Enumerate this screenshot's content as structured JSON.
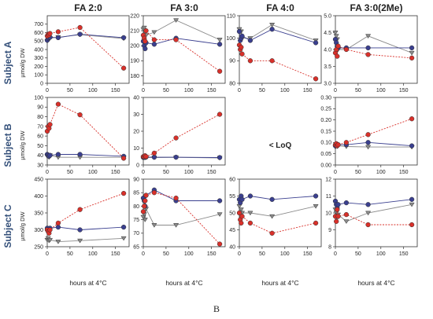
{
  "figure_label": "B",
  "columns": [
    "FA 2:0",
    "FA 3:0",
    "FA 4:0",
    "FA 3:0(2Me)"
  ],
  "rows": [
    "Subject A",
    "Subject B",
    "Subject C"
  ],
  "ylabel": "µmol/g DW",
  "xlabel": "hours at 4°C",
  "loq_text": "< LoQ",
  "colors": {
    "red": "#d9302a",
    "blue": "#3a3f8f",
    "gray": "#8a8a8a"
  },
  "chart_data": [
    {
      "type": "line",
      "row": 0,
      "col": 0,
      "ylim": [
        0,
        800
      ],
      "yticks": [
        0,
        100,
        200,
        300,
        400,
        500,
        600,
        700
      ],
      "x": [
        0,
        2,
        4,
        6,
        24,
        72,
        168
      ],
      "series": [
        {
          "color": "red",
          "marker": "circle",
          "values": [
            560,
            580,
            570,
            590,
            610,
            660,
            180
          ]
        },
        {
          "color": "blue",
          "marker": "circle",
          "values": [
            510,
            530,
            540,
            545,
            540,
            580,
            540
          ]
        },
        {
          "color": "gray",
          "marker": "triangle",
          "values": [
            500,
            515,
            520,
            535,
            545,
            575,
            530
          ]
        }
      ]
    },
    {
      "type": "line",
      "row": 0,
      "col": 1,
      "ylim": [
        175,
        220
      ],
      "yticks": [
        180,
        190,
        200,
        210,
        220
      ],
      "x": [
        0,
        2,
        4,
        6,
        24,
        72,
        168
      ],
      "series": [
        {
          "color": "red",
          "marker": "circle",
          "values": [
            207,
            205,
            203,
            210,
            204,
            204,
            183
          ]
        },
        {
          "color": "blue",
          "marker": "circle",
          "values": [
            203,
            200,
            198,
            202,
            201,
            205,
            201
          ]
        },
        {
          "color": "gray",
          "marker": "triangle",
          "values": [
            211,
            212,
            209,
            207,
            209,
            217,
            204
          ]
        }
      ]
    },
    {
      "type": "line",
      "row": 0,
      "col": 2,
      "ylim": [
        80,
        110
      ],
      "yticks": [
        80,
        90,
        100,
        110
      ],
      "x": [
        0,
        2,
        4,
        6,
        24,
        72,
        168
      ],
      "series": [
        {
          "color": "red",
          "marker": "circle",
          "values": [
            97,
            95,
            96,
            93,
            90,
            90,
            82
          ]
        },
        {
          "color": "blue",
          "marker": "circle",
          "values": [
            103,
            99,
            100,
            101,
            99,
            104,
            98
          ]
        },
        {
          "color": "gray",
          "marker": "triangle",
          "values": [
            104,
            103,
            103,
            100,
            100,
            106,
            99
          ]
        }
      ]
    },
    {
      "type": "line",
      "row": 0,
      "col": 3,
      "ylim": [
        3.0,
        5.0
      ],
      "yticks": [
        3.0,
        3.5,
        4.0,
        4.5,
        5.0
      ],
      "x": [
        0,
        2,
        4,
        6,
        24,
        72,
        168
      ],
      "series": [
        {
          "color": "red",
          "marker": "circle",
          "values": [
            3.9,
            4.0,
            3.8,
            4.1,
            4.0,
            3.85,
            3.75
          ]
        },
        {
          "color": "blue",
          "marker": "circle",
          "values": [
            4.3,
            4.2,
            4.1,
            4.05,
            4.05,
            4.05,
            4.05
          ]
        },
        {
          "color": "gray",
          "marker": "triangle",
          "values": [
            4.5,
            4.4,
            4.3,
            4.0,
            4.0,
            4.4,
            3.9
          ]
        }
      ]
    },
    {
      "type": "line",
      "row": 1,
      "col": 0,
      "ylim": [
        30,
        100
      ],
      "yticks": [
        30,
        40,
        50,
        60,
        70,
        80,
        90,
        100
      ],
      "x": [
        0,
        2,
        4,
        6,
        24,
        72,
        168
      ],
      "series": [
        {
          "color": "red",
          "marker": "circle",
          "values": [
            65,
            70,
            68,
            72,
            93,
            82,
            37
          ]
        },
        {
          "color": "blue",
          "marker": "circle",
          "values": [
            41,
            40,
            39,
            40,
            41,
            41,
            39
          ]
        },
        {
          "color": "gray",
          "marker": "triangle",
          "values": [
            39,
            40,
            38,
            40,
            38,
            38,
            38
          ]
        }
      ]
    },
    {
      "type": "line",
      "row": 1,
      "col": 1,
      "ylim": [
        0,
        40
      ],
      "yticks": [
        0,
        10,
        20,
        30,
        40
      ],
      "x": [
        0,
        2,
        4,
        6,
        24,
        72,
        168
      ],
      "series": [
        {
          "color": "red",
          "marker": "circle",
          "values": [
            5,
            5,
            5.5,
            5,
            7,
            16,
            30
          ]
        },
        {
          "color": "blue",
          "marker": "circle",
          "values": [
            4.5,
            4.8,
            4.5,
            4.7,
            4.6,
            4.6,
            4.4
          ]
        },
        {
          "color": "gray",
          "marker": "triangle",
          "values": [
            4.2,
            4.4,
            4.3,
            4.5,
            4.4,
            4.5,
            4.2
          ]
        }
      ]
    },
    {
      "type": "line",
      "row": 1,
      "col": 3,
      "ylim": [
        0.0,
        0.3
      ],
      "yticks": [
        0.0,
        0.05,
        0.1,
        0.15,
        0.2,
        0.25,
        0.3
      ],
      "x": [
        0,
        2,
        4,
        6,
        24,
        72,
        168
      ],
      "series": [
        {
          "color": "red",
          "marker": "circle",
          "values": [
            0.09,
            0.095,
            0.085,
            0.09,
            0.1,
            0.135,
            0.205
          ]
        },
        {
          "color": "blue",
          "marker": "circle",
          "values": [
            0.085,
            0.09,
            0.088,
            0.09,
            0.09,
            0.1,
            0.085
          ]
        },
        {
          "color": "gray",
          "marker": "triangle",
          "values": [
            0.08,
            0.085,
            0.082,
            0.085,
            0.082,
            0.08,
            0.08
          ]
        }
      ]
    },
    {
      "type": "line",
      "row": 2,
      "col": 0,
      "ylim": [
        250,
        450
      ],
      "yticks": [
        250,
        300,
        350,
        400,
        450
      ],
      "x": [
        0,
        2,
        4,
        6,
        24,
        72,
        168
      ],
      "series": [
        {
          "color": "red",
          "marker": "circle",
          "values": [
            300,
            295,
            290,
            300,
            320,
            360,
            408
          ]
        },
        {
          "color": "blue",
          "marker": "circle",
          "values": [
            305,
            300,
            300,
            305,
            308,
            300,
            308
          ]
        },
        {
          "color": "gray",
          "marker": "triangle",
          "values": [
            270,
            275,
            268,
            270,
            265,
            268,
            275
          ]
        }
      ]
    },
    {
      "type": "line",
      "row": 2,
      "col": 1,
      "ylim": [
        65,
        90
      ],
      "yticks": [
        65,
        70,
        75,
        80,
        85,
        90
      ],
      "x": [
        0,
        2,
        4,
        6,
        24,
        72,
        168
      ],
      "series": [
        {
          "color": "red",
          "marker": "circle",
          "values": [
            78,
            80,
            82,
            84,
            85,
            83,
            66
          ]
        },
        {
          "color": "blue",
          "marker": "circle",
          "values": [
            83,
            82,
            80,
            84,
            86,
            82,
            82
          ]
        },
        {
          "color": "gray",
          "marker": "triangle",
          "values": [
            76,
            77,
            75,
            79,
            73,
            73,
            77
          ]
        }
      ]
    },
    {
      "type": "line",
      "row": 2,
      "col": 2,
      "ylim": [
        40,
        60
      ],
      "yticks": [
        40,
        45,
        50,
        55,
        60
      ],
      "x": [
        0,
        2,
        4,
        6,
        24,
        72,
        168
      ],
      "series": [
        {
          "color": "red",
          "marker": "circle",
          "values": [
            50,
            48,
            47,
            49,
            47,
            44,
            47
          ]
        },
        {
          "color": "blue",
          "marker": "circle",
          "values": [
            54,
            53,
            55,
            54,
            55,
            54,
            55
          ]
        },
        {
          "color": "gray",
          "marker": "triangle",
          "values": [
            52,
            50,
            51,
            50,
            50,
            49,
            52
          ]
        }
      ]
    },
    {
      "type": "line",
      "row": 2,
      "col": 3,
      "ylim": [
        8,
        12
      ],
      "yticks": [
        8,
        9,
        10,
        11,
        12
      ],
      "x": [
        0,
        2,
        4,
        6,
        24,
        72,
        168
      ],
      "series": [
        {
          "color": "red",
          "marker": "circle",
          "values": [
            9.8,
            9.5,
            10.2,
            9.8,
            9.9,
            9.3,
            9.3
          ]
        },
        {
          "color": "blue",
          "marker": "circle",
          "values": [
            10.7,
            10.5,
            10.3,
            10.5,
            10.6,
            10.5,
            10.8
          ]
        },
        {
          "color": "gray",
          "marker": "triangle",
          "values": [
            10.2,
            10.0,
            9.7,
            9.9,
            9.5,
            10.0,
            10.5
          ]
        }
      ]
    }
  ]
}
